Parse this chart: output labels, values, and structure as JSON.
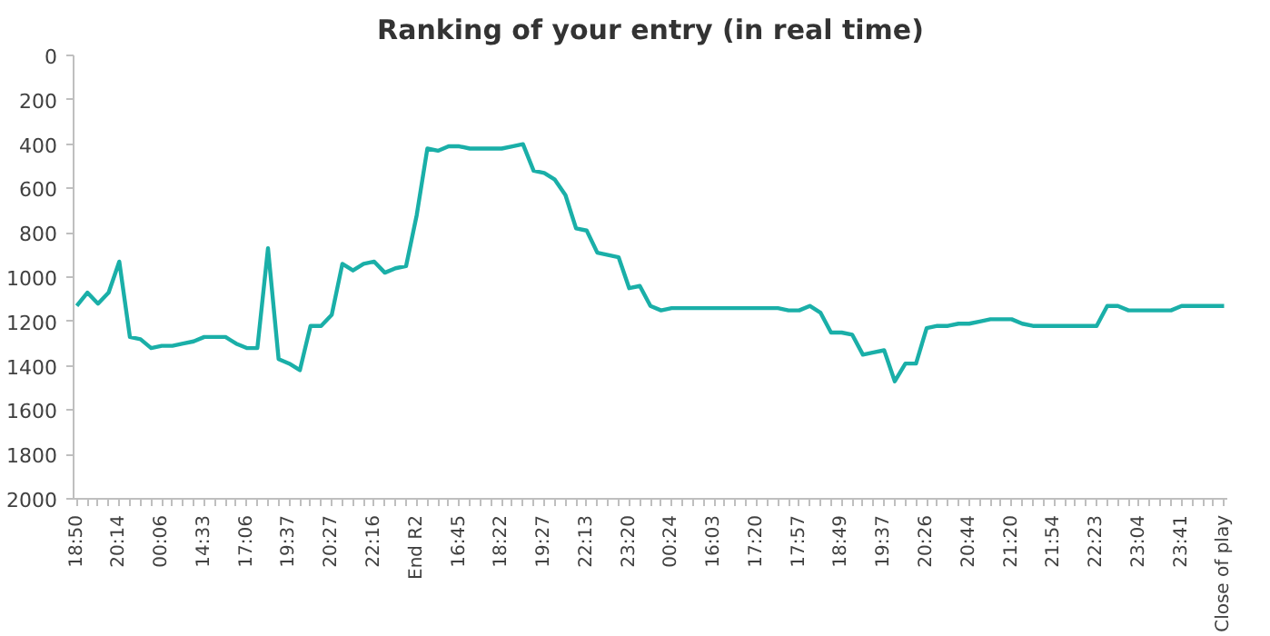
{
  "chart_data": {
    "type": "line",
    "title": "Ranking of your entry (in real time)",
    "categories": [
      "18:50",
      null,
      null,
      null,
      "20:14",
      null,
      null,
      null,
      "00:06",
      null,
      null,
      null,
      "14:33",
      null,
      null,
      null,
      "17:06",
      null,
      null,
      null,
      "19:37",
      null,
      null,
      null,
      "20:27",
      null,
      null,
      null,
      "22:16",
      null,
      null,
      null,
      "End R2",
      null,
      null,
      null,
      "16:45",
      null,
      null,
      null,
      "18:22",
      null,
      null,
      null,
      "19:27",
      null,
      null,
      null,
      "22:13",
      null,
      null,
      null,
      "23:20",
      null,
      null,
      null,
      "00:24",
      null,
      null,
      null,
      "16:03",
      null,
      null,
      null,
      "17:20",
      null,
      null,
      null,
      "17:57",
      null,
      null,
      null,
      "18:49",
      null,
      null,
      null,
      "19:37",
      null,
      null,
      null,
      "20:26",
      null,
      null,
      null,
      "20:44",
      null,
      null,
      null,
      "21:20",
      null,
      null,
      null,
      "21:54",
      null,
      null,
      null,
      "22:23",
      null,
      null,
      null,
      "23:04",
      null,
      null,
      null,
      "23:41",
      null,
      null,
      null,
      "Close of play"
    ],
    "series": [
      {
        "color": "#1aafa8",
        "values": [
          1130,
          1070,
          1120,
          1070,
          930,
          1270,
          1280,
          1320,
          1310,
          1310,
          1300,
          1290,
          1270,
          1270,
          1270,
          1300,
          1320,
          1320,
          870,
          1370,
          1390,
          1420,
          1220,
          1220,
          1170,
          940,
          970,
          940,
          930,
          980,
          960,
          950,
          720,
          420,
          430,
          410,
          410,
          420,
          420,
          420,
          420,
          410,
          400,
          520,
          530,
          560,
          630,
          780,
          790,
          890,
          900,
          910,
          1050,
          1040,
          1130,
          1150,
          1140,
          1140,
          1140,
          1140,
          1140,
          1140,
          1140,
          1140,
          1140,
          1140,
          1140,
          1150,
          1150,
          1130,
          1160,
          1250,
          1250,
          1260,
          1350,
          1340,
          1330,
          1470,
          1390,
          1390,
          1230,
          1220,
          1220,
          1210,
          1210,
          1200,
          1190,
          1190,
          1190,
          1210,
          1220,
          1220,
          1220,
          1220,
          1220,
          1220,
          1220,
          1130,
          1130,
          1150,
          1150,
          1150,
          1150,
          1150,
          1130,
          1130,
          1130,
          1130,
          1130
        ]
      }
    ],
    "ylim": [
      2000,
      0
    ],
    "yticks": [
      0,
      200,
      400,
      600,
      800,
      1000,
      1200,
      1400,
      1600,
      1800,
      2000
    ],
    "grid": false,
    "marker": "none",
    "line_style": "solid"
  }
}
